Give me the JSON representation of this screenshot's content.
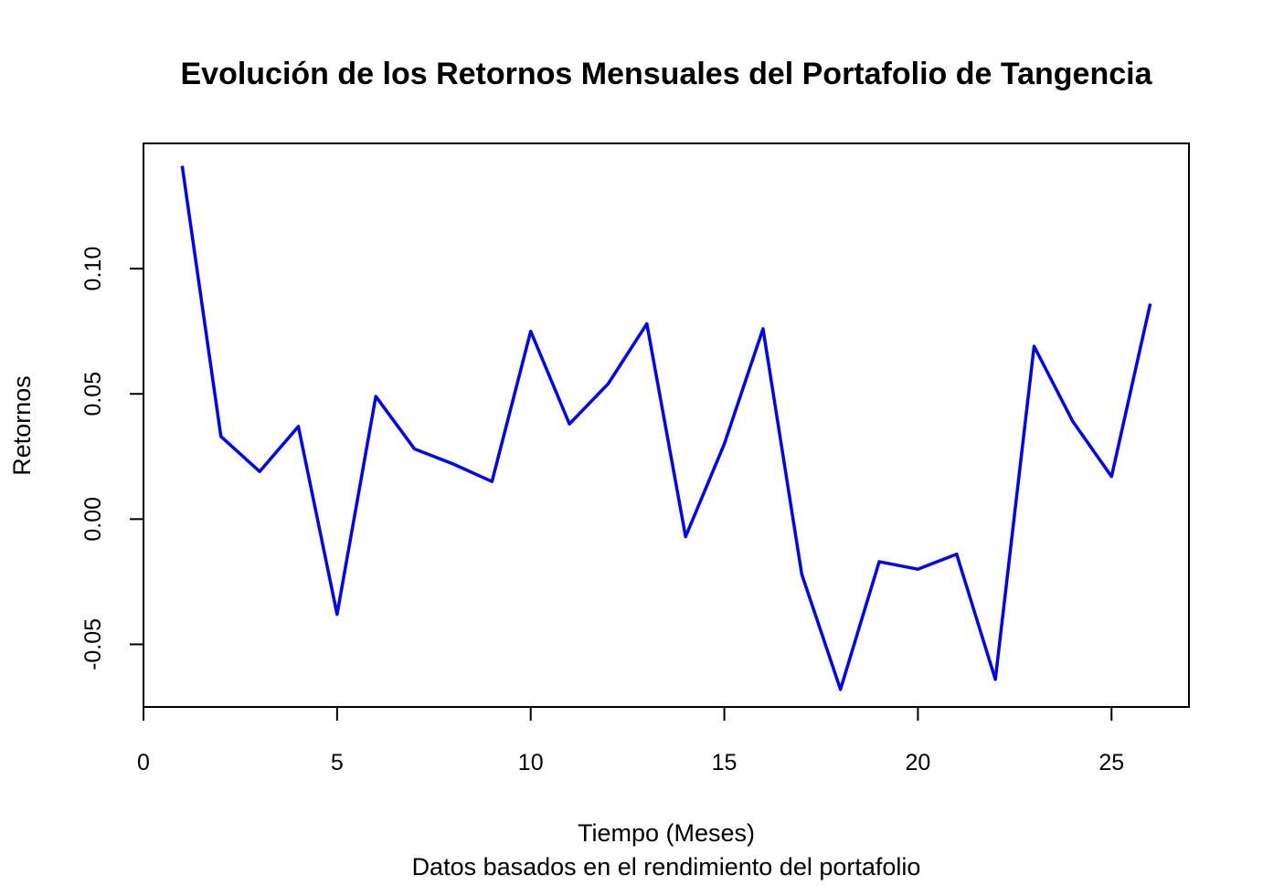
{
  "chart_data": {
    "type": "line",
    "title": "Evolución de los Retornos Mensuales del Portafolio de Tangencia",
    "subtitle": "Datos basados en el rendimiento del portafolio",
    "xlabel": "Tiempo (Meses)",
    "ylabel": "Retornos",
    "xlim": [
      0,
      27
    ],
    "ylim": [
      -0.075,
      0.15
    ],
    "xticks": [
      0,
      5,
      10,
      15,
      20,
      25
    ],
    "xtick_labels": [
      "0",
      "5",
      "10",
      "15",
      "20",
      "25"
    ],
    "yticks": [
      -0.05,
      0.0,
      0.05,
      0.1
    ],
    "ytick_labels": [
      "-0.05",
      "0.00",
      "0.05",
      "0.10"
    ],
    "grid": false,
    "legend": "none",
    "line_color": "#0000ff",
    "series": [
      {
        "x": [
          1,
          2,
          3,
          4,
          5,
          6,
          7,
          8,
          9,
          10,
          11,
          12,
          13,
          14,
          15,
          16,
          17,
          18,
          19,
          20,
          21,
          22,
          23,
          24,
          25,
          26
        ],
        "values": [
          0.141,
          0.033,
          0.019,
          0.037,
          -0.038,
          0.049,
          0.028,
          0.022,
          0.015,
          0.075,
          0.038,
          0.054,
          0.078,
          -0.007,
          0.03,
          0.076,
          -0.022,
          -0.068,
          -0.017,
          -0.02,
          -0.014,
          -0.064,
          0.069,
          0.039,
          0.017,
          0.086
        ]
      }
    ]
  }
}
